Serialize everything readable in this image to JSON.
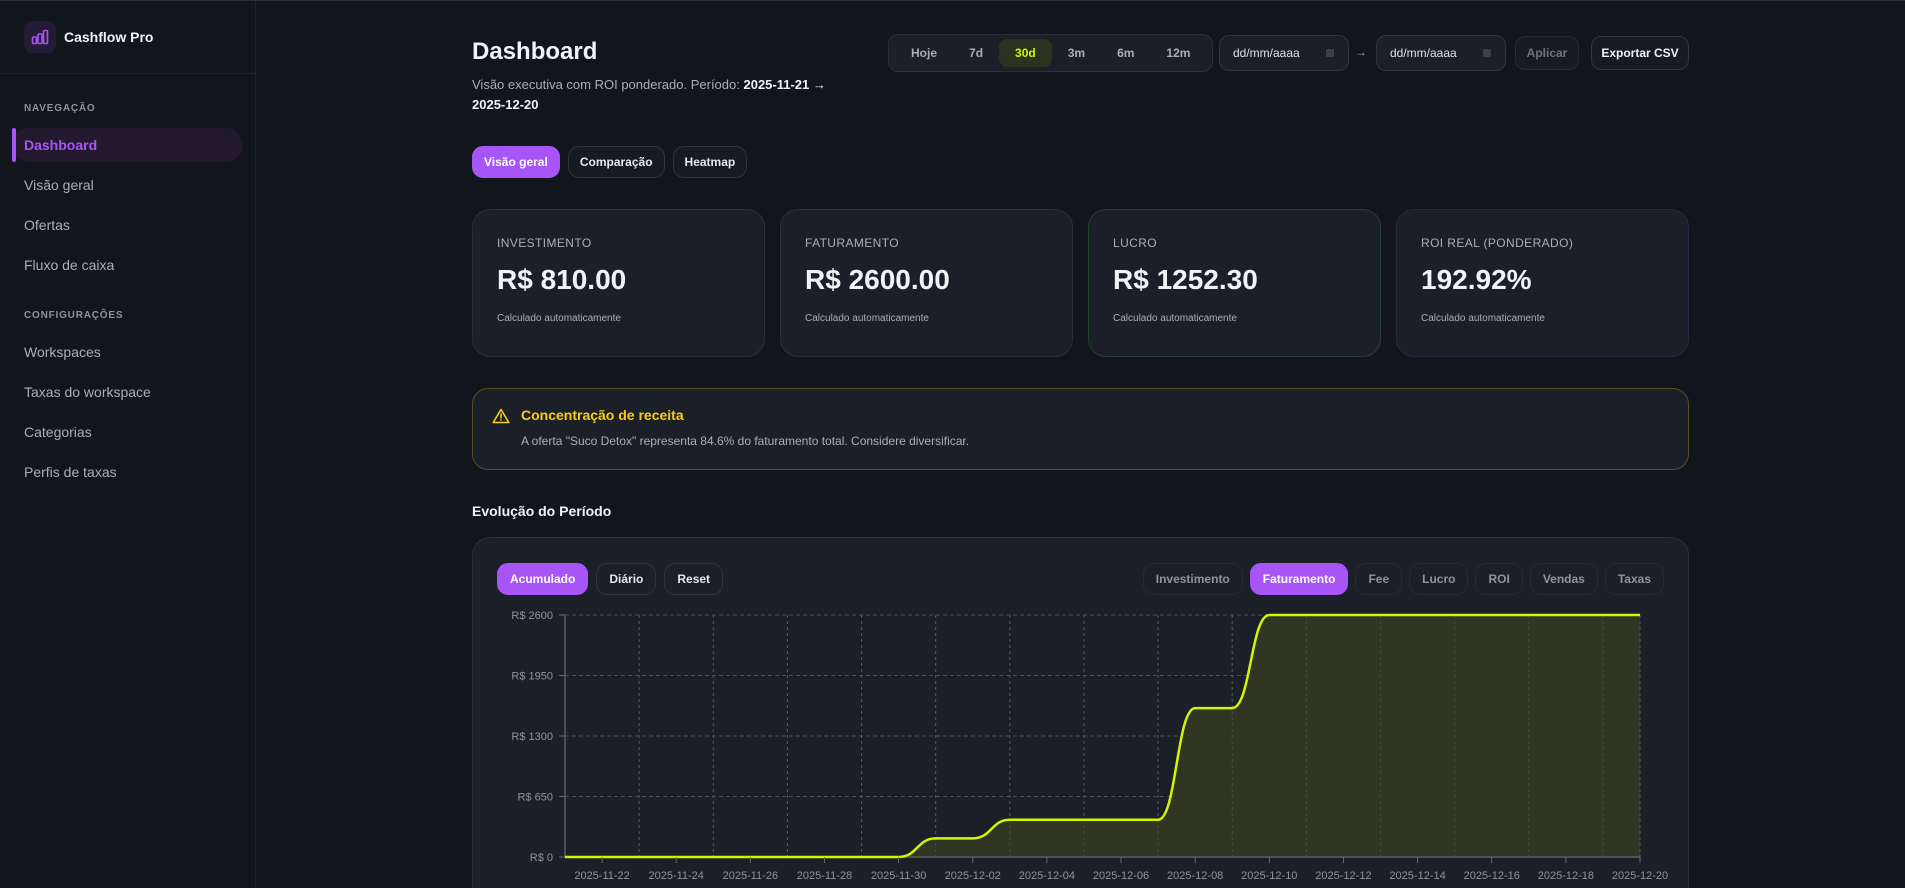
{
  "app": {
    "name": "Cashflow Pro",
    "logo_icon": "bar-chart-icon"
  },
  "sidebar": {
    "sections": [
      {
        "title": "NAVEGAÇÃO",
        "items": [
          {
            "label": "Dashboard",
            "active": true
          },
          {
            "label": "Visão geral",
            "active": false
          },
          {
            "label": "Ofertas",
            "active": false
          },
          {
            "label": "Fluxo de caixa",
            "active": false
          }
        ]
      },
      {
        "title": "CONFIGURAÇÕES",
        "items": [
          {
            "label": "Workspaces",
            "active": false
          },
          {
            "label": "Taxas do workspace",
            "active": false
          },
          {
            "label": "Categorias",
            "active": false
          },
          {
            "label": "Perfis de taxas",
            "active": false
          }
        ]
      }
    ]
  },
  "header": {
    "title": "Dashboard",
    "subtitle_prefix": "Visão executiva com ROI ponderado. Período: ",
    "period_start": "2025-11-21",
    "period_arrow": "→",
    "period_end": "2025-12-20",
    "ranges": [
      "Hoje",
      "7d",
      "30d",
      "3m",
      "6m",
      "12m"
    ],
    "active_range": "30d",
    "date_from_placeholder": "dd/mm/aaaa",
    "date_to_placeholder": "dd/mm/aaaa",
    "date_separator": "→",
    "apply_label": "Aplicar",
    "export_label": "Exportar CSV"
  },
  "tabs": [
    {
      "label": "Visão geral",
      "active": true
    },
    {
      "label": "Comparação",
      "active": false
    },
    {
      "label": "Heatmap",
      "active": false
    }
  ],
  "kpis": [
    {
      "label": "INVESTIMENTO",
      "value": "R$ 810.00",
      "note": "Calculado automaticamente"
    },
    {
      "label": "FATURAMENTO",
      "value": "R$ 2600.00",
      "note": "Calculado automaticamente"
    },
    {
      "label": "LUCRO",
      "value": "R$ 1252.30",
      "note": "Calculado automaticamente"
    },
    {
      "label": "ROI REAL (PONDERADO)",
      "value": "192.92%",
      "note": "Calculado automaticamente"
    }
  ],
  "alert": {
    "icon": "warning-triangle-icon",
    "title": "Concentração de receita",
    "text": "A oferta \"Suco Detox\" representa 84.6% do faturamento total. Considere diversificar."
  },
  "chart_section": {
    "title": "Evolução do Período",
    "modes": [
      {
        "label": "Acumulado",
        "active": true
      },
      {
        "label": "Diário",
        "active": false
      },
      {
        "label": "Reset",
        "active": false
      }
    ],
    "series_toggles": [
      {
        "label": "Investimento",
        "active": false
      },
      {
        "label": "Faturamento",
        "active": true
      },
      {
        "label": "Fee",
        "active": false
      },
      {
        "label": "Lucro",
        "active": false
      },
      {
        "label": "ROI",
        "active": false
      },
      {
        "label": "Vendas",
        "active": false
      },
      {
        "label": "Taxas",
        "active": false
      }
    ]
  },
  "colors": {
    "accent": "#a855f7",
    "line": "#d4f500",
    "fill": "#323823",
    "warning": "#facc15"
  },
  "chart_data": {
    "type": "area",
    "title": "Evolução do Período",
    "series": [
      {
        "name": "Faturamento (Acumulado)",
        "values": [
          0,
          0,
          0,
          0,
          0,
          0,
          0,
          0,
          0,
          0,
          200,
          200,
          400,
          400,
          400,
          400,
          400,
          1600,
          1600,
          2600,
          2600,
          2600,
          2600,
          2600,
          2600,
          2600,
          2600,
          2600,
          2600,
          2600
        ]
      }
    ],
    "x": [
      "2025-11-21",
      "2025-11-22",
      "2025-11-23",
      "2025-11-24",
      "2025-11-25",
      "2025-11-26",
      "2025-11-27",
      "2025-11-28",
      "2025-11-29",
      "2025-11-30",
      "2025-12-01",
      "2025-12-02",
      "2025-12-03",
      "2025-12-04",
      "2025-12-05",
      "2025-12-06",
      "2025-12-07",
      "2025-12-08",
      "2025-12-09",
      "2025-12-10",
      "2025-12-11",
      "2025-12-12",
      "2025-12-13",
      "2025-12-14",
      "2025-12-15",
      "2025-12-16",
      "2025-12-17",
      "2025-12-18",
      "2025-12-19",
      "2025-12-20"
    ],
    "x_tick_labels": [
      "2025-11-22",
      "2025-11-24",
      "2025-11-26",
      "2025-11-28",
      "2025-11-30",
      "2025-12-02",
      "2025-12-04",
      "2025-12-06",
      "2025-12-08",
      "2025-12-10",
      "2025-12-12",
      "2025-12-14",
      "2025-12-16",
      "2025-12-18",
      "2025-12-20"
    ],
    "y_tick_labels": [
      "R$ 0",
      "R$ 650",
      "R$ 1300",
      "R$ 1950",
      "R$ 2600"
    ],
    "y_ticks": [
      0,
      650,
      1300,
      1950,
      2600
    ],
    "ylim": [
      0,
      2600
    ],
    "xlabel": "",
    "ylabel": "",
    "grid": true,
    "legend": "none"
  }
}
